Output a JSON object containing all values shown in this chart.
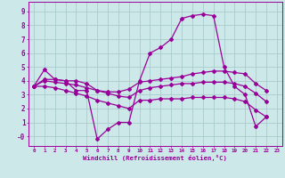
{
  "background_color": "#cce8e8",
  "grid_color": "#aacccc",
  "line_color": "#990099",
  "xlabel": "Windchill (Refroidissement éolien,°C)",
  "xlim": [
    -0.5,
    23.5
  ],
  "ylim": [
    -0.7,
    9.7
  ],
  "ytick_vals": [
    0,
    1,
    2,
    3,
    4,
    5,
    6,
    7,
    8,
    9
  ],
  "ytick_labels": [
    "-0",
    "1",
    "2",
    "3",
    "4",
    "5",
    "6",
    "7",
    "8",
    "9"
  ],
  "xtick_vals": [
    0,
    1,
    2,
    3,
    4,
    5,
    6,
    7,
    8,
    9,
    10,
    11,
    12,
    13,
    14,
    15,
    16,
    17,
    18,
    19,
    20,
    21,
    22,
    23
  ],
  "line1_x": [
    0,
    1,
    2,
    3,
    4,
    5,
    6,
    7,
    8,
    9,
    10,
    11,
    12,
    13,
    14,
    15,
    16,
    17,
    18,
    19,
    20,
    21,
    22
  ],
  "line1_y": [
    3.6,
    4.8,
    4.1,
    4.0,
    3.3,
    3.3,
    -0.2,
    0.5,
    1.0,
    1.0,
    4.0,
    6.0,
    6.4,
    7.0,
    8.5,
    8.7,
    8.8,
    8.7,
    5.0,
    3.6,
    3.0,
    0.7,
    1.4
  ],
  "line2_x": [
    0,
    1,
    2,
    3,
    4,
    5,
    6,
    7,
    8,
    9,
    10,
    11,
    12,
    13,
    14,
    15,
    16,
    17,
    18,
    19,
    20,
    21,
    22
  ],
  "line2_y": [
    3.6,
    4.1,
    4.1,
    4.0,
    4.0,
    3.8,
    3.3,
    3.2,
    3.2,
    3.4,
    3.9,
    4.0,
    4.1,
    4.2,
    4.3,
    4.5,
    4.6,
    4.7,
    4.7,
    4.6,
    4.5,
    3.8,
    3.3
  ],
  "line3_x": [
    0,
    1,
    2,
    3,
    4,
    5,
    6,
    7,
    8,
    9,
    10,
    11,
    12,
    13,
    14,
    15,
    16,
    17,
    18,
    19,
    20,
    21,
    22
  ],
  "line3_y": [
    3.6,
    4.0,
    3.9,
    3.8,
    3.7,
    3.5,
    3.3,
    3.1,
    2.9,
    2.8,
    3.3,
    3.5,
    3.6,
    3.7,
    3.8,
    3.8,
    3.9,
    3.9,
    3.9,
    3.8,
    3.6,
    3.1,
    2.5
  ],
  "line4_x": [
    0,
    1,
    2,
    3,
    4,
    5,
    6,
    7,
    8,
    9,
    10,
    11,
    12,
    13,
    14,
    15,
    16,
    17,
    18,
    19,
    20,
    21,
    22
  ],
  "line4_y": [
    3.6,
    3.6,
    3.5,
    3.3,
    3.1,
    2.9,
    2.6,
    2.4,
    2.2,
    2.0,
    2.6,
    2.6,
    2.7,
    2.7,
    2.7,
    2.8,
    2.8,
    2.8,
    2.8,
    2.7,
    2.5,
    1.9,
    1.4
  ]
}
